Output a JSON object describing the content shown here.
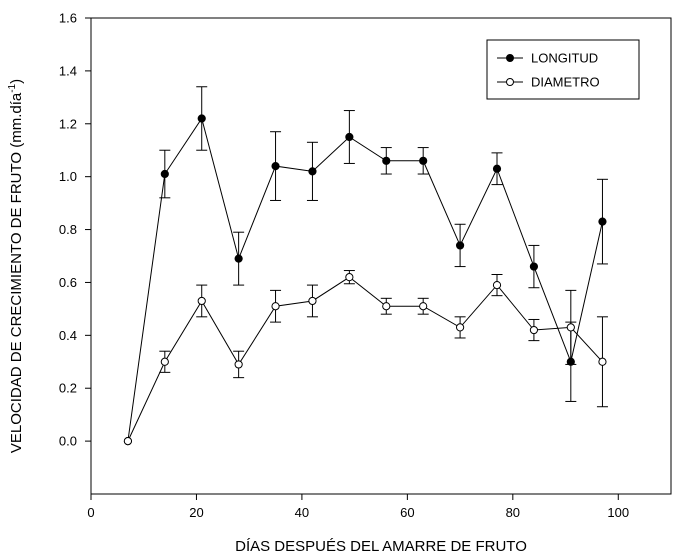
{
  "chart_data": {
    "type": "line",
    "title": "",
    "xlabel": "DÍAS DESPUÉS DEL AMARRE DE FRUTO",
    "ylabel_main": "VELOCIDAD DE CRECIMIENTO DE FRUTO (mm.día",
    "ylabel_sup": "-1",
    "ylabel_close": ")",
    "xlim": [
      0,
      110
    ],
    "ylim": [
      -0.2,
      1.6
    ],
    "xticks": [
      0,
      20,
      40,
      60,
      80,
      100
    ],
    "yticks": [
      0.0,
      0.2,
      0.4,
      0.6,
      0.8,
      1.0,
      1.2,
      1.4,
      1.6
    ],
    "ytick_labels": [
      "0.0",
      "0.2",
      "0.4",
      "0.6",
      "0.8",
      "1.0",
      "1.2",
      "1.4",
      "1.6"
    ],
    "grid": false,
    "legend_position": "top-right",
    "series": [
      {
        "name": "LONGITUD",
        "marker": "filled",
        "x": [
          7,
          14,
          21,
          28,
          35,
          42,
          49,
          56,
          63,
          70,
          77,
          84,
          91,
          97
        ],
        "y": [
          0.0,
          1.01,
          1.22,
          0.69,
          1.04,
          1.02,
          1.15,
          1.06,
          1.06,
          0.74,
          1.03,
          0.66,
          0.3,
          0.83
        ],
        "err": [
          0.0,
          0.09,
          0.12,
          0.1,
          0.13,
          0.11,
          0.1,
          0.05,
          0.05,
          0.08,
          0.06,
          0.08,
          0.15,
          0.16
        ]
      },
      {
        "name": "DIAMETRO",
        "marker": "open",
        "x": [
          7,
          14,
          21,
          28,
          35,
          42,
          49,
          56,
          63,
          70,
          77,
          84,
          91,
          97
        ],
        "y": [
          0.0,
          0.3,
          0.53,
          0.29,
          0.51,
          0.53,
          0.62,
          0.51,
          0.51,
          0.43,
          0.59,
          0.42,
          0.43,
          0.3
        ],
        "err": [
          0.0,
          0.04,
          0.06,
          0.05,
          0.06,
          0.06,
          0.025,
          0.03,
          0.03,
          0.04,
          0.04,
          0.04,
          0.14,
          0.17
        ]
      }
    ]
  }
}
